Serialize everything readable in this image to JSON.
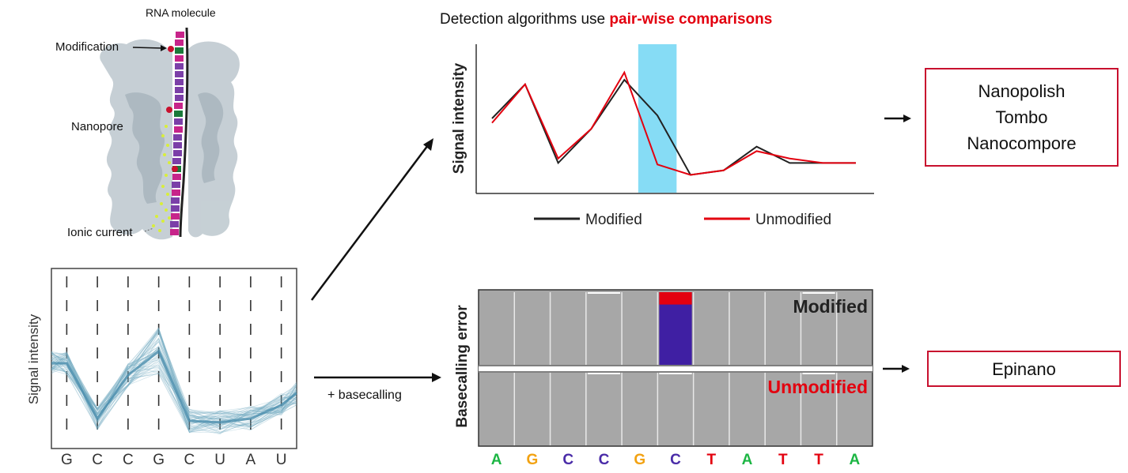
{
  "pore": {
    "title": "RNA molecule",
    "modification_label": "Modification",
    "nanopore_label": "Nanopore",
    "ionic_label": "Ionic current"
  },
  "squiggle": {
    "ylabel": "Signal intensity",
    "bases": [
      "G",
      "C",
      "C",
      "G",
      "C",
      "U",
      "A",
      "U"
    ]
  },
  "detect": {
    "title_prefix": "Detection algorithms use ",
    "title_highlight": "pair-wise comparisons",
    "highlight_color": "#e3000f"
  },
  "chart_data": [
    {
      "type": "line",
      "ylabel": "Signal intensity",
      "x": [
        1,
        2,
        3,
        4,
        5,
        6,
        7,
        8,
        9,
        10,
        11,
        12
      ],
      "series": [
        {
          "name": "Modified",
          "color": "#222222",
          "values": [
            50,
            73,
            20,
            43,
            76,
            52,
            12,
            15,
            31,
            20,
            20,
            20
          ]
        },
        {
          "name": "Unmodified",
          "color": "#e3000f",
          "values": [
            47,
            73,
            23,
            43,
            81,
            19,
            12,
            15,
            28,
            23,
            20,
            20
          ]
        }
      ],
      "highlight_x": 6,
      "highlight_color": "#86dcf5",
      "legend_placement": "bottom",
      "ylim": [
        0,
        100
      ]
    },
    {
      "type": "bar",
      "ylabel": "Basecalling error",
      "categories": [
        "A",
        "G",
        "C",
        "C",
        "G",
        "C",
        "T",
        "A",
        "T",
        "T",
        "A"
      ],
      "category_colors": [
        "#1db644",
        "#f2a212",
        "#4a2ca8",
        "#4a2ca8",
        "#f2a212",
        "#4a2ca8",
        "#e3000f",
        "#1db644",
        "#e3000f",
        "#e3000f",
        "#1db644"
      ],
      "panels": [
        {
          "name": "Modified",
          "color": "#222222",
          "values": [
            0,
            0,
            0,
            1,
            0,
            100,
            0,
            0,
            0,
            1,
            0
          ],
          "mismatch": [
            0,
            0,
            0,
            0,
            0,
            17,
            0,
            0,
            0,
            0,
            0
          ]
        },
        {
          "name": "Unmodified",
          "color": "#e3000f",
          "values": [
            0,
            0,
            0,
            1,
            0,
            1,
            0,
            0,
            0,
            1,
            0
          ]
        }
      ],
      "mismatch_color": "#e3000f",
      "error_color": "#3f1fa3",
      "ylim": [
        0,
        100
      ]
    }
  ],
  "arrows": {
    "basecalling_label": "+ basecalling"
  },
  "tools": {
    "comparison": [
      "Nanopolish",
      "Tombo",
      "Nanocompore"
    ],
    "basecalling": [
      "Epinano"
    ]
  }
}
